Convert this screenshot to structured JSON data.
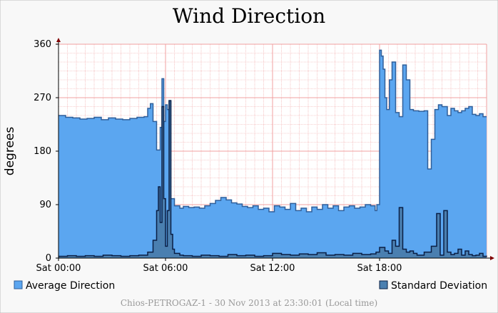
{
  "chart_data": {
    "type": "area",
    "title": "Wind Direction",
    "ylabel": "degrees",
    "xlabel": "",
    "ylim": [
      0,
      360
    ],
    "xlim_hours": [
      0,
      24
    ],
    "y_ticks": [
      0,
      90,
      180,
      270,
      360
    ],
    "x_ticks": [
      {
        "hour": 0,
        "label": "Sat 00:00"
      },
      {
        "hour": 6,
        "label": "Sat 06:00"
      },
      {
        "hour": 12,
        "label": "Sat 12:00"
      },
      {
        "hour": 18,
        "label": "Sat 18:00"
      }
    ],
    "grid": true,
    "legend": "bottom",
    "footer": "Chios-PETROGAZ-1 - 30 Nov 2013 at 23:30:01 (Local time)",
    "colors": {
      "average_fill": "#5ba6f0",
      "average_line": "#2f5f9a",
      "std_fill": "#4a7fb0",
      "std_line": "#0a1f44",
      "grid": "#f0a0a0",
      "plot_bg": "#ffffff",
      "axis": "#800000"
    },
    "series": [
      {
        "name": "Average Direction",
        "x": [
          0,
          0.4,
          0.8,
          1.2,
          1.6,
          2.0,
          2.4,
          2.8,
          3.2,
          3.6,
          4.0,
          4.4,
          4.8,
          5.0,
          5.15,
          5.3,
          5.5,
          5.7,
          5.8,
          5.9,
          6.0,
          6.1,
          6.2,
          6.3,
          6.5,
          6.8,
          7.0,
          7.3,
          7.6,
          7.9,
          8.2,
          8.5,
          8.8,
          9.1,
          9.4,
          9.7,
          10.0,
          10.3,
          10.6,
          10.9,
          11.2,
          11.5,
          11.8,
          12.1,
          12.4,
          12.7,
          13.0,
          13.3,
          13.6,
          13.9,
          14.2,
          14.5,
          14.8,
          15.1,
          15.4,
          15.7,
          16.0,
          16.3,
          16.6,
          16.9,
          17.2,
          17.5,
          17.75,
          17.85,
          18.0,
          18.1,
          18.2,
          18.3,
          18.4,
          18.55,
          18.7,
          18.9,
          19.1,
          19.3,
          19.5,
          19.7,
          19.9,
          20.2,
          20.5,
          20.7,
          20.9,
          21.1,
          21.3,
          21.5,
          21.8,
          22.0,
          22.2,
          22.4,
          22.6,
          22.8,
          23.0,
          23.2,
          23.4,
          23.6,
          23.8,
          24.0
        ],
        "values": [
          240,
          237,
          236,
          234,
          235,
          237,
          233,
          236,
          234,
          233,
          235,
          237,
          238,
          252,
          260,
          230,
          182,
          220,
          302,
          230,
          258,
          250,
          265,
          100,
          88,
          84,
          87,
          85,
          86,
          84,
          88,
          92,
          97,
          102,
          98,
          93,
          91,
          87,
          85,
          88,
          82,
          84,
          78,
          88,
          86,
          82,
          92,
          80,
          84,
          78,
          86,
          82,
          90,
          84,
          88,
          80,
          86,
          88,
          84,
          86,
          90,
          88,
          80,
          90,
          350,
          340,
          318,
          270,
          250,
          300,
          330,
          245,
          238,
          325,
          300,
          250,
          248,
          247,
          248,
          150,
          200,
          250,
          258,
          255,
          240,
          252,
          248,
          245,
          248,
          252,
          255,
          242,
          240,
          243,
          238,
          238
        ]
      },
      {
        "name": "Standard Deviation",
        "x": [
          0,
          0.5,
          1.0,
          1.5,
          2.0,
          2.5,
          3.0,
          3.5,
          4.0,
          4.5,
          5.0,
          5.3,
          5.5,
          5.6,
          5.7,
          5.8,
          5.9,
          6.0,
          6.1,
          6.2,
          6.3,
          6.4,
          6.5,
          6.8,
          7.0,
          7.5,
          8.0,
          8.5,
          9.0,
          9.5,
          10.0,
          10.5,
          11.0,
          11.5,
          12.0,
          12.5,
          13.0,
          13.5,
          14.0,
          14.5,
          15.0,
          15.5,
          16.0,
          16.5,
          17.0,
          17.5,
          17.8,
          18.0,
          18.3,
          18.5,
          18.7,
          18.9,
          19.1,
          19.3,
          19.5,
          19.7,
          19.9,
          20.1,
          20.5,
          20.9,
          21.2,
          21.4,
          21.6,
          21.8,
          22.0,
          22.2,
          22.4,
          22.6,
          22.8,
          23.0,
          23.2,
          23.4,
          23.6,
          23.8,
          24.0
        ],
        "values": [
          3,
          4,
          3,
          4,
          3,
          5,
          4,
          3,
          4,
          5,
          10,
          30,
          80,
          120,
          60,
          255,
          100,
          20,
          80,
          265,
          40,
          15,
          8,
          5,
          4,
          3,
          5,
          4,
          3,
          6,
          4,
          5,
          3,
          4,
          8,
          6,
          5,
          7,
          6,
          9,
          5,
          6,
          5,
          8,
          6,
          7,
          10,
          18,
          12,
          8,
          30,
          20,
          85,
          15,
          10,
          12,
          8,
          5,
          10,
          20,
          75,
          5,
          80,
          10,
          6,
          8,
          15,
          5,
          12,
          6,
          4,
          5,
          8,
          3,
          4
        ]
      }
    ]
  }
}
